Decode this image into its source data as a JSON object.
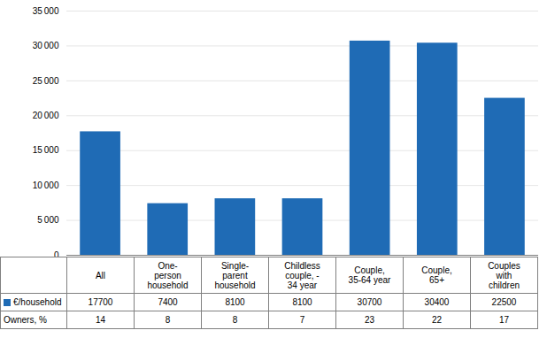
{
  "chart_data": {
    "type": "bar",
    "categories": [
      "All",
      "One-\nperson\nhousehold",
      "Single-\nparent\nhousehold",
      "Childless\ncouple, -\n34 year",
      "Couple,\n35-64 year",
      "Couple,\n65+",
      "Couples\nwith\nchildren"
    ],
    "values": [
      17700,
      7400,
      8100,
      8100,
      30700,
      30400,
      22500
    ],
    "color": "#1F6BB5",
    "ylim": [
      0,
      35000
    ],
    "yticks": [
      0,
      {
        "value": 5000,
        "label": "5 000"
      },
      {
        "value": 10000,
        "label": "10 000"
      },
      {
        "value": 15000,
        "label": "15 000"
      },
      {
        "value": 20000,
        "label": "20 000"
      },
      {
        "value": 25000,
        "label": "25 000"
      },
      {
        "value": 30000,
        "label": "30 000"
      },
      {
        "value": 35000,
        "label": "35 000"
      }
    ],
    "grid": true,
    "table_rows": [
      {
        "name": "€/household",
        "color": "#1F6BB5",
        "values": [
          17700,
          7400,
          8100,
          8100,
          30700,
          30400,
          22500
        ]
      },
      {
        "name": "Owners, %",
        "values": [
          14,
          8,
          8,
          7,
          23,
          22,
          17
        ]
      }
    ]
  }
}
